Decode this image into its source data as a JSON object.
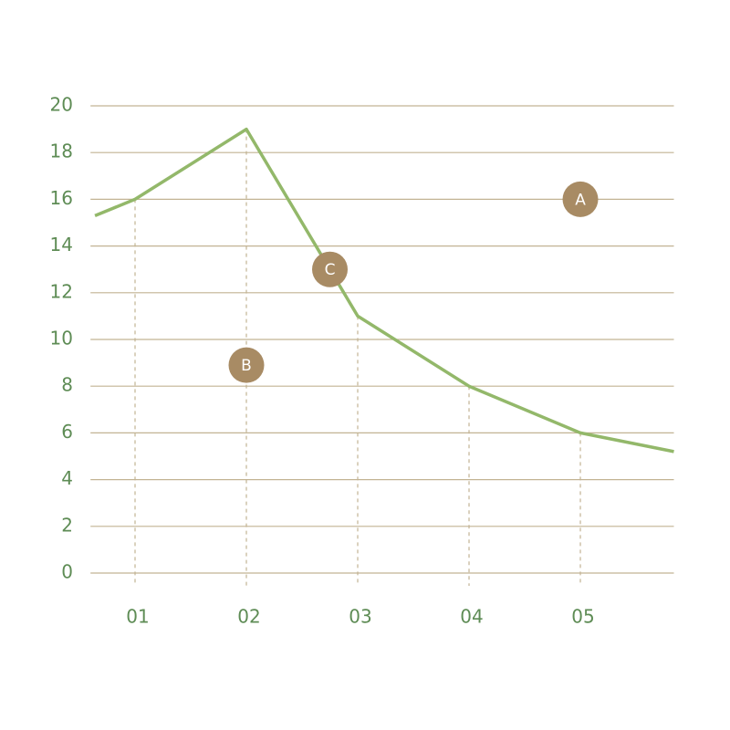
{
  "chart_data": {
    "type": "line",
    "x": [
      0.64,
      1,
      2,
      3,
      4,
      5,
      5.84
    ],
    "series": [
      {
        "name": "Series",
        "color": "#93b86a",
        "values": [
          15.3,
          16,
          19,
          11,
          8,
          6,
          5.2
        ]
      }
    ],
    "xlim": [
      0.6,
      5.84
    ],
    "xticks": [
      {
        "value": 1,
        "label": "01"
      },
      {
        "value": 2,
        "label": "02"
      },
      {
        "value": 3,
        "label": "03"
      },
      {
        "value": 4,
        "label": "04"
      },
      {
        "value": 5,
        "label": "05"
      }
    ],
    "ylim": [
      0,
      20
    ],
    "yticks": [
      0,
      2,
      4,
      6,
      8,
      10,
      12,
      14,
      16,
      18,
      20
    ],
    "grid": true,
    "annotations": [
      {
        "label": "A",
        "x": 5,
        "y": 16,
        "color": "#a88b64"
      },
      {
        "label": "B",
        "x": 2,
        "y": 8.9,
        "color": "#a88b64"
      },
      {
        "label": "C",
        "x": 2.75,
        "y": 13,
        "color": "#a88b64"
      }
    ]
  }
}
